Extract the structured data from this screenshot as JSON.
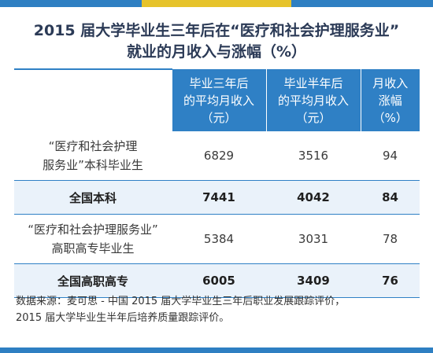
{
  "title": {
    "line1": "2015 届大学毕业生三年后在“医疗和社会护理服务业”",
    "line2": "就业的月收入与涨幅（%）"
  },
  "table": {
    "headers": [
      {
        "line1": "",
        "line2": "",
        "line3": ""
      },
      {
        "line1": "毕业三年后",
        "line2": "的平均月收入",
        "line3": "（元）"
      },
      {
        "line1": "毕业半年后",
        "line2": "的平均月收入",
        "line3": "（元）"
      },
      {
        "line1": "月收入",
        "line2": "涨幅",
        "line3": "（%）"
      }
    ],
    "rows": [
      {
        "label_line1": "“医疗和社会护理",
        "label_line2": "服务业”本科毕业生",
        "three_year": "6829",
        "half_year": "3516",
        "growth": "94"
      },
      {
        "label_line1": "全国本科",
        "label_line2": "",
        "three_year": "7441",
        "half_year": "4042",
        "growth": "84"
      },
      {
        "label_line1": "“医疗和社会护理服务业”",
        "label_line2": "高职高专毕业生",
        "three_year": "5384",
        "half_year": "3031",
        "growth": "78"
      },
      {
        "label_line1": "全国高职高专",
        "label_line2": "",
        "three_year": "6005",
        "half_year": "3409",
        "growth": "76"
      }
    ]
  },
  "source": {
    "line1": "数据来源：麦可思 - 中国 2015 届大学毕业生三年后职业发展跟踪评价，",
    "line2": "2015 届大学毕业生半年后培养质量跟踪评价。"
  },
  "colors": {
    "header_blue": "#2f80c5",
    "accent_yellow": "#e6c32b",
    "row_tint": "#eaf2fa"
  }
}
